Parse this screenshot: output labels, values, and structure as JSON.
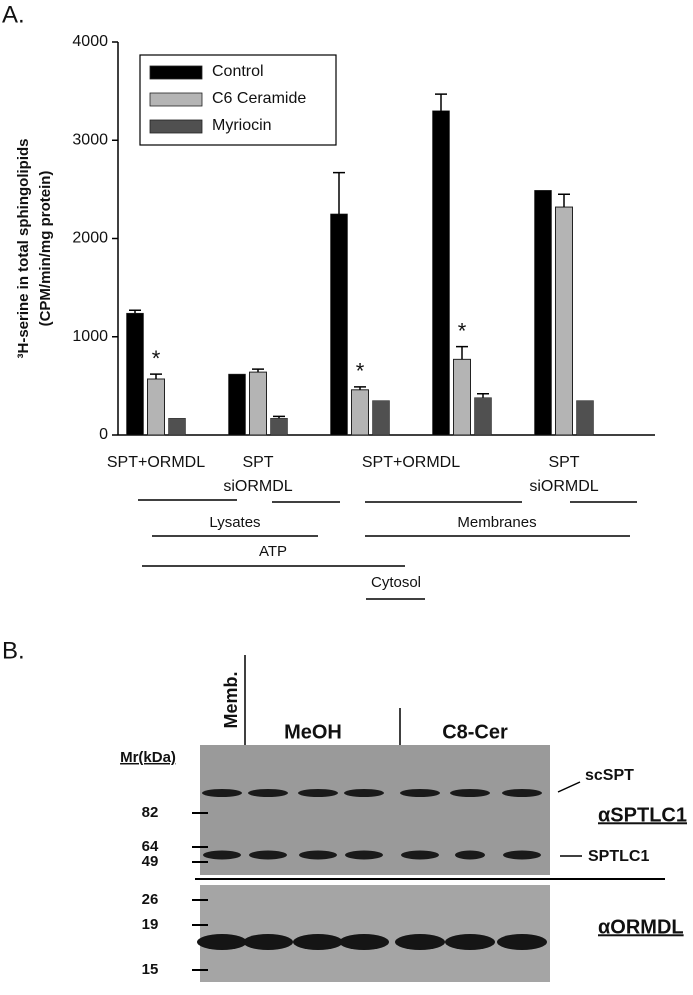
{
  "panel_a": "A.",
  "panel_b": "B.",
  "chart_data": {
    "type": "bar",
    "ylabel": [
      "³H-serine in total sphingolipids",
      "(CPM/min/mg protein)"
    ],
    "categories": [
      "SPT+ORMDL",
      "SPT siORMDL",
      "SPT+ORMDL",
      null,
      "SPT siORMDL"
    ],
    "series": [
      {
        "name": "Control",
        "color": "#000000",
        "values": [
          1240,
          620,
          2250,
          3300,
          2490
        ],
        "errors": [
          30,
          null,
          420,
          170,
          null
        ]
      },
      {
        "name": "C6 Ceramide",
        "color": "#b4b4b4",
        "values": [
          570,
          640,
          460,
          770,
          2320
        ],
        "errors": [
          50,
          30,
          30,
          130,
          130
        ],
        "markers": [
          "*",
          null,
          "*",
          "*",
          null
        ]
      },
      {
        "name": "Myriocin",
        "color": "#505050",
        "values": [
          170,
          170,
          350,
          380,
          350
        ],
        "errors": [
          null,
          20,
          null,
          40,
          null
        ]
      }
    ],
    "ylim": [
      0,
      4000
    ],
    "yticks": [
      0,
      1000,
      2000,
      3000,
      4000
    ],
    "legend": "top-left"
  },
  "groupings": [
    "Lysates",
    "Membranes",
    "ATP",
    "Cytosol"
  ],
  "blot": {
    "lanes": [
      "Memb.",
      "MeOH",
      "C8-Cer"
    ],
    "mr_title": "Mr(kDa)",
    "markers": [
      82,
      64,
      49,
      26,
      19,
      15
    ],
    "bands": [
      "scSPT",
      "SPTLC1"
    ],
    "antibodies": [
      "αSPTLC1",
      "αORMDL"
    ]
  }
}
